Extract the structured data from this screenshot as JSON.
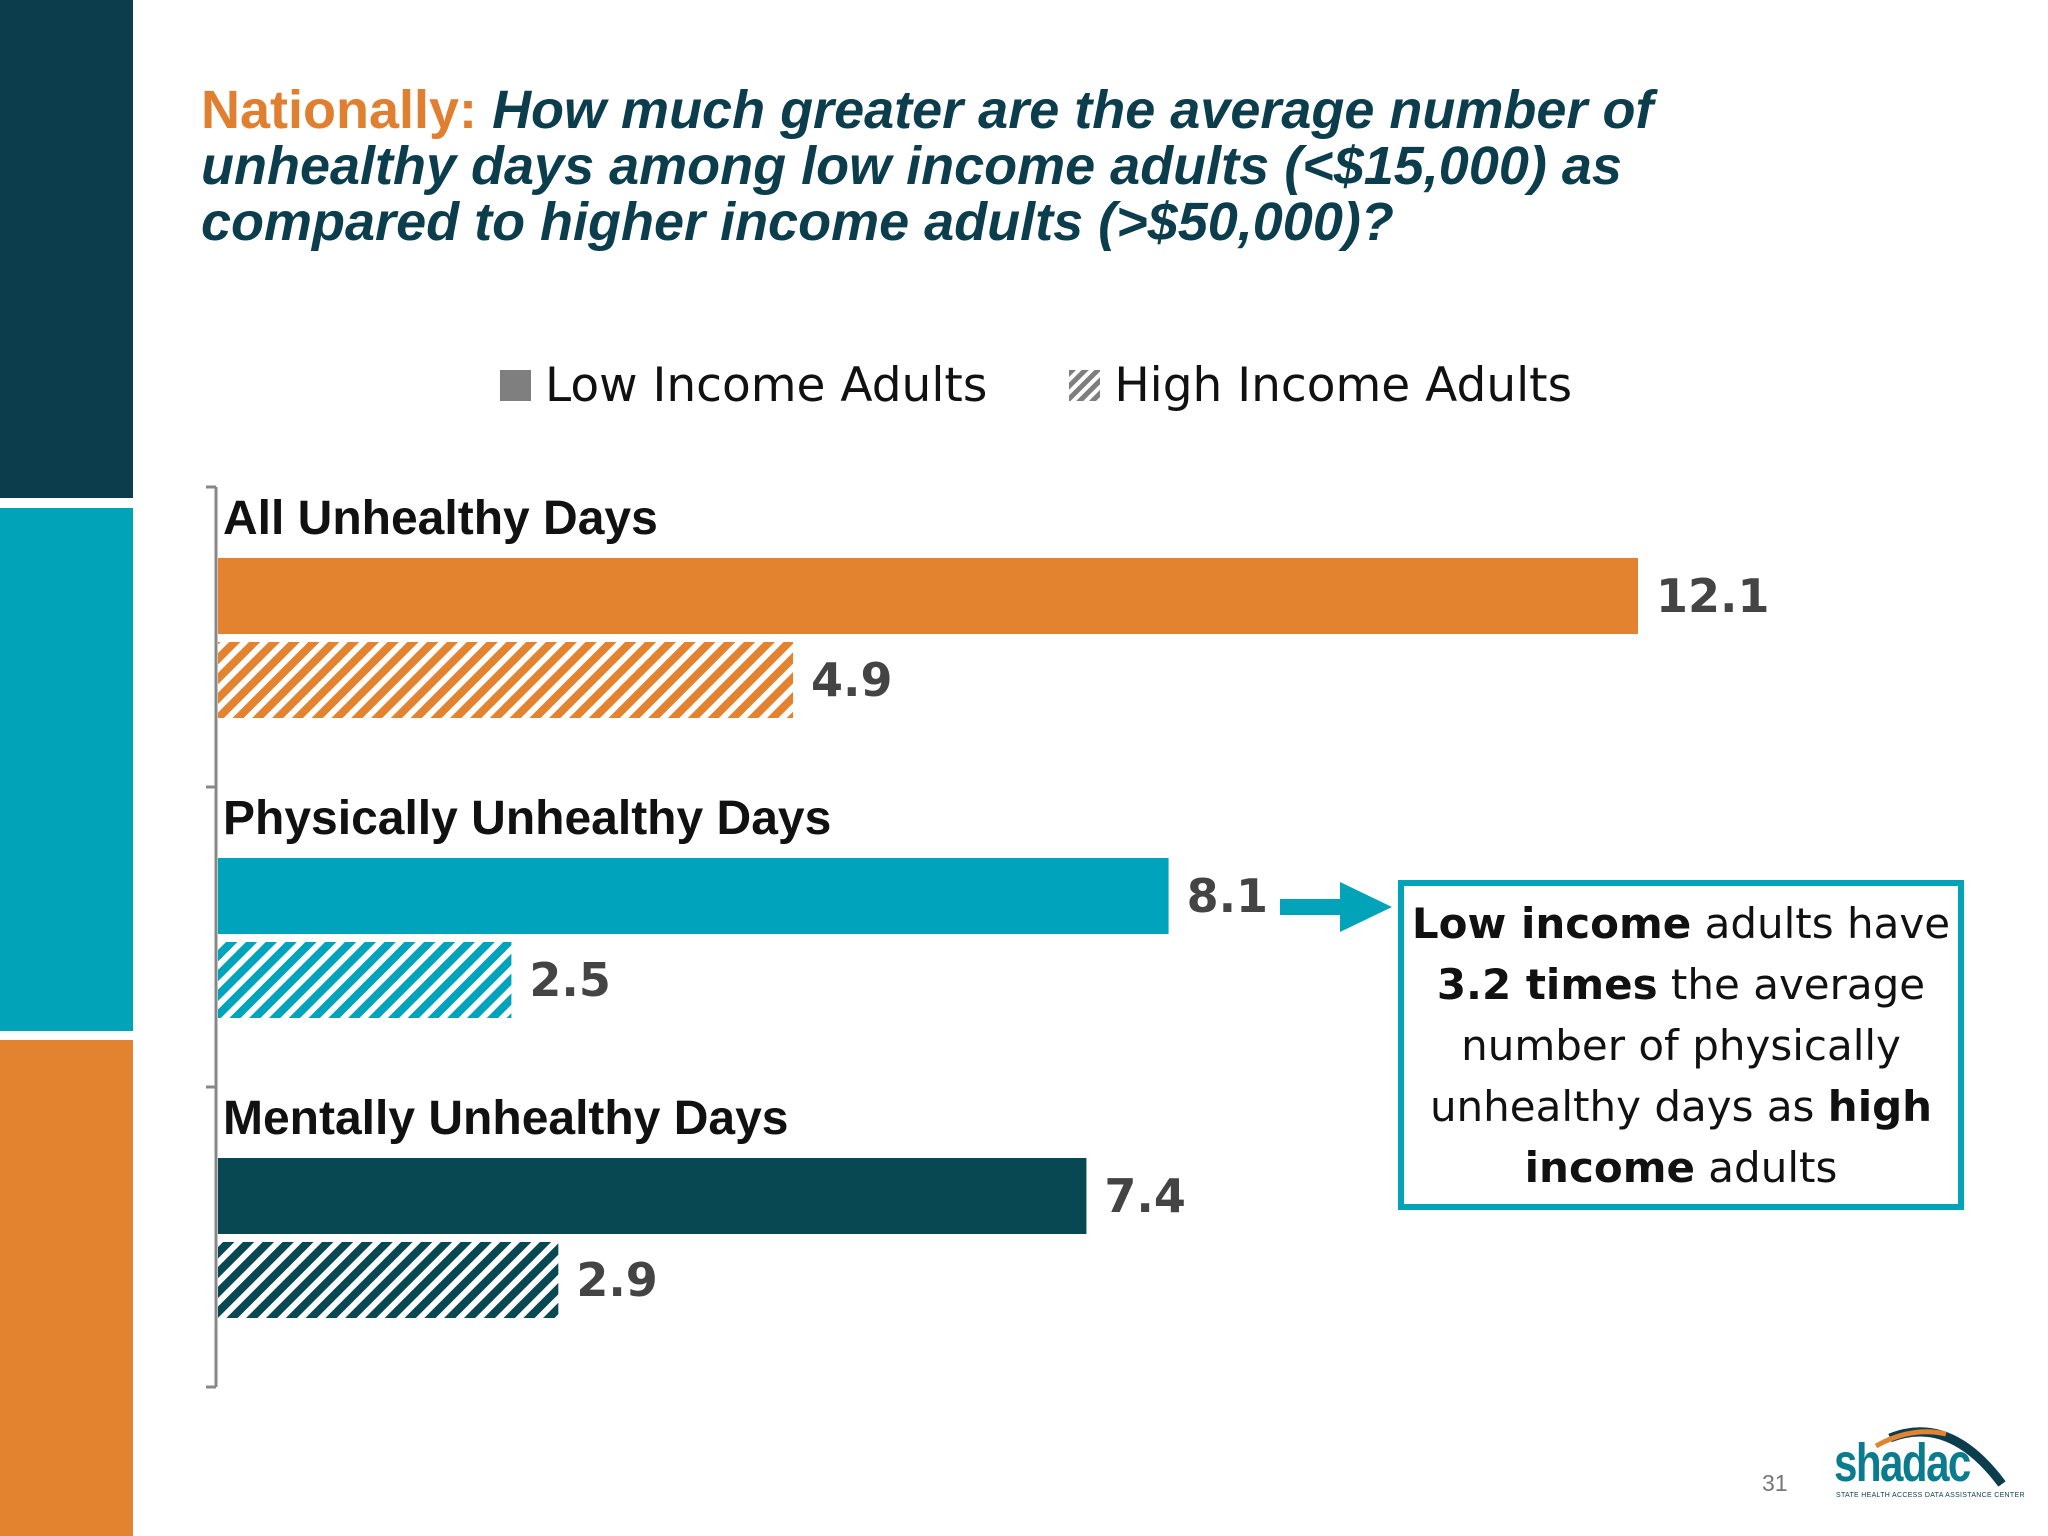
{
  "title": {
    "lead": "Nationally:",
    "question": "How much greater are the average number of unhealthy days among low income adults (<$15,000) as compared to higher income adults (>$50,000)?"
  },
  "legend": {
    "low": "Low Income Adults",
    "high": "High Income Adults"
  },
  "colors": {
    "orange": "#e4832f",
    "teal": "#00a3bc",
    "navy": "#084853",
    "legend_gray": "#7f7f7f",
    "callout_border": "#00a3b8"
  },
  "chart_data": {
    "type": "bar",
    "orientation": "horizontal",
    "categories": [
      "All Unhealthy Days",
      "Physically Unhealthy Days",
      "Mentally Unhealthy Days"
    ],
    "series": [
      {
        "name": "Low Income Adults",
        "values": [
          12.1,
          8.1,
          7.4
        ]
      },
      {
        "name": "High Income Adults",
        "values": [
          4.9,
          2.5,
          2.9
        ]
      }
    ],
    "value_labels": {
      "low": [
        "12.1",
        "8.1",
        "7.4"
      ],
      "high": [
        "4.9",
        "2.5",
        "2.9"
      ]
    },
    "xlim": [
      0,
      12.1
    ],
    "legend_position": "top",
    "grid": false
  },
  "callout": {
    "p1": "Low income",
    "p2": " adults have ",
    "p3": "3.2 times",
    "p4": " the average number of physically unhealthy days as ",
    "p5": "high income",
    "p6": " adults"
  },
  "page_number": "31",
  "logo": {
    "word": "shadac",
    "tagline": "STATE HEALTH ACCESS DATA ASSISTANCE CENTER"
  }
}
